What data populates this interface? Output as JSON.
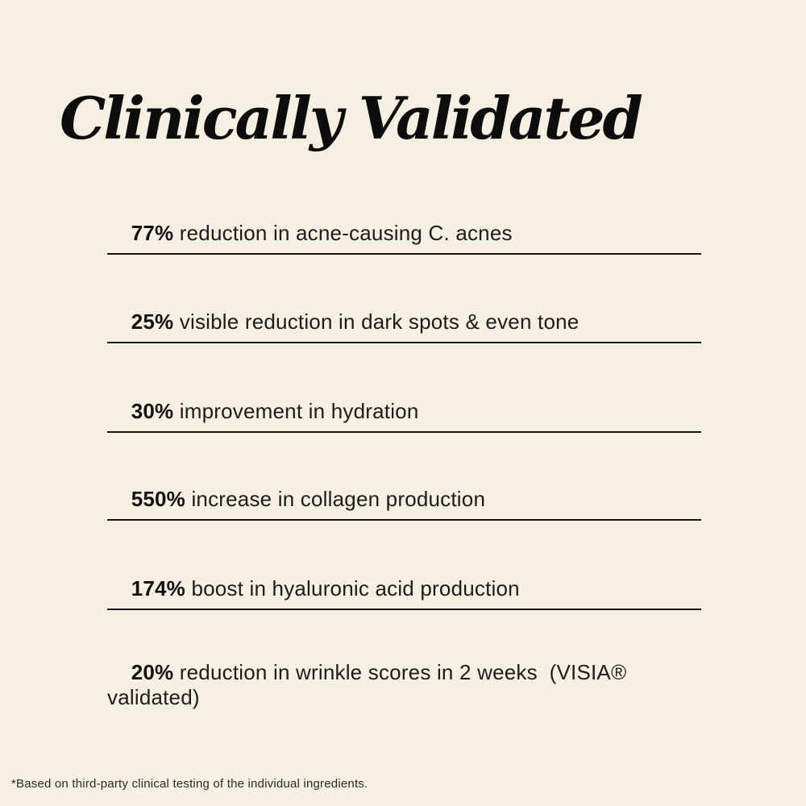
{
  "theme": {
    "background_color": "#f6f0e2",
    "text_color": "#1c1c1c",
    "title_color": "#0d0d0d",
    "divider_color": "#141414"
  },
  "title": "Clinically Validated",
  "stats": {
    "rows": [
      {
        "value": "77%",
        "text": "reduction in acne-causing C. acnes"
      },
      {
        "value": "25%",
        "text": "visible reduction in dark spots & even tone"
      },
      {
        "value": "30%",
        "text": "improvement in hydration"
      },
      {
        "value": "550%",
        "text": "increase in collagen production"
      },
      {
        "value": "174%",
        "text": "boost in hyaluronic acid production"
      },
      {
        "value": "20%",
        "text": "reduction in wrinkle scores in 2 weeks  (VISIA® validated)"
      }
    ]
  },
  "footnote": "*Based on third-party clinical testing of the individual ingredients."
}
